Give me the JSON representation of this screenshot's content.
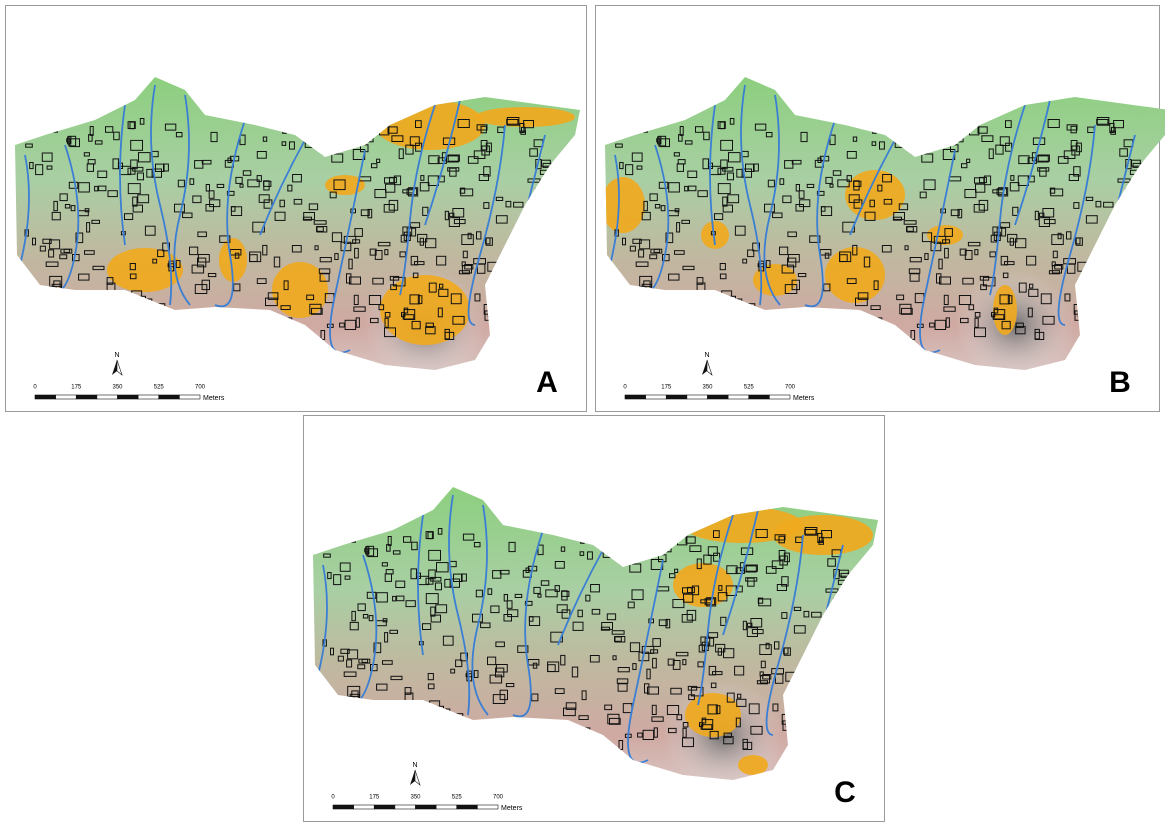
{
  "panels": [
    {
      "label": "A",
      "north": "N",
      "scale": {
        "ticks": [
          0,
          175,
          350,
          525,
          700
        ],
        "unit": "Meters"
      }
    },
    {
      "label": "B",
      "north": "N",
      "scale": {
        "ticks": [
          0,
          175,
          350,
          525,
          700
        ],
        "unit": "Meters"
      }
    },
    {
      "label": "C",
      "north": "N",
      "scale": {
        "ticks": [
          0,
          175,
          350,
          525,
          700
        ],
        "unit": "Meters"
      }
    }
  ]
}
